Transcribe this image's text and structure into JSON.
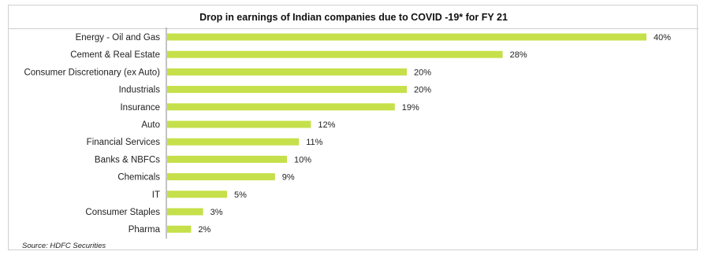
{
  "chart_data": {
    "type": "bar",
    "orientation": "horizontal",
    "title": "Drop in earnings of Indian companies  due to COVID -19* for FY 21",
    "categories": [
      "Energy - Oil and Gas",
      "Cement  & Real Estate",
      "Consumer Discretionary (ex Auto)",
      "Industrials",
      "Insurance",
      "Auto",
      "Financial Services",
      "Banks & NBFCs",
      "Chemicals",
      "IT",
      "Consumer Staples",
      "Pharma"
    ],
    "values": [
      40,
      28,
      20,
      20,
      19,
      12,
      11,
      10,
      9,
      5,
      3,
      2
    ],
    "value_labels": [
      "40%",
      "28%",
      "20%",
      "20%",
      "19%",
      "12%",
      "11%",
      "10%",
      "9%",
      "5%",
      "3%",
      "2%"
    ],
    "xlim": [
      0,
      40
    ],
    "bar_color": "#c5e04a",
    "grid": false,
    "legend": "none",
    "source": "Source: HDFC Securities"
  }
}
